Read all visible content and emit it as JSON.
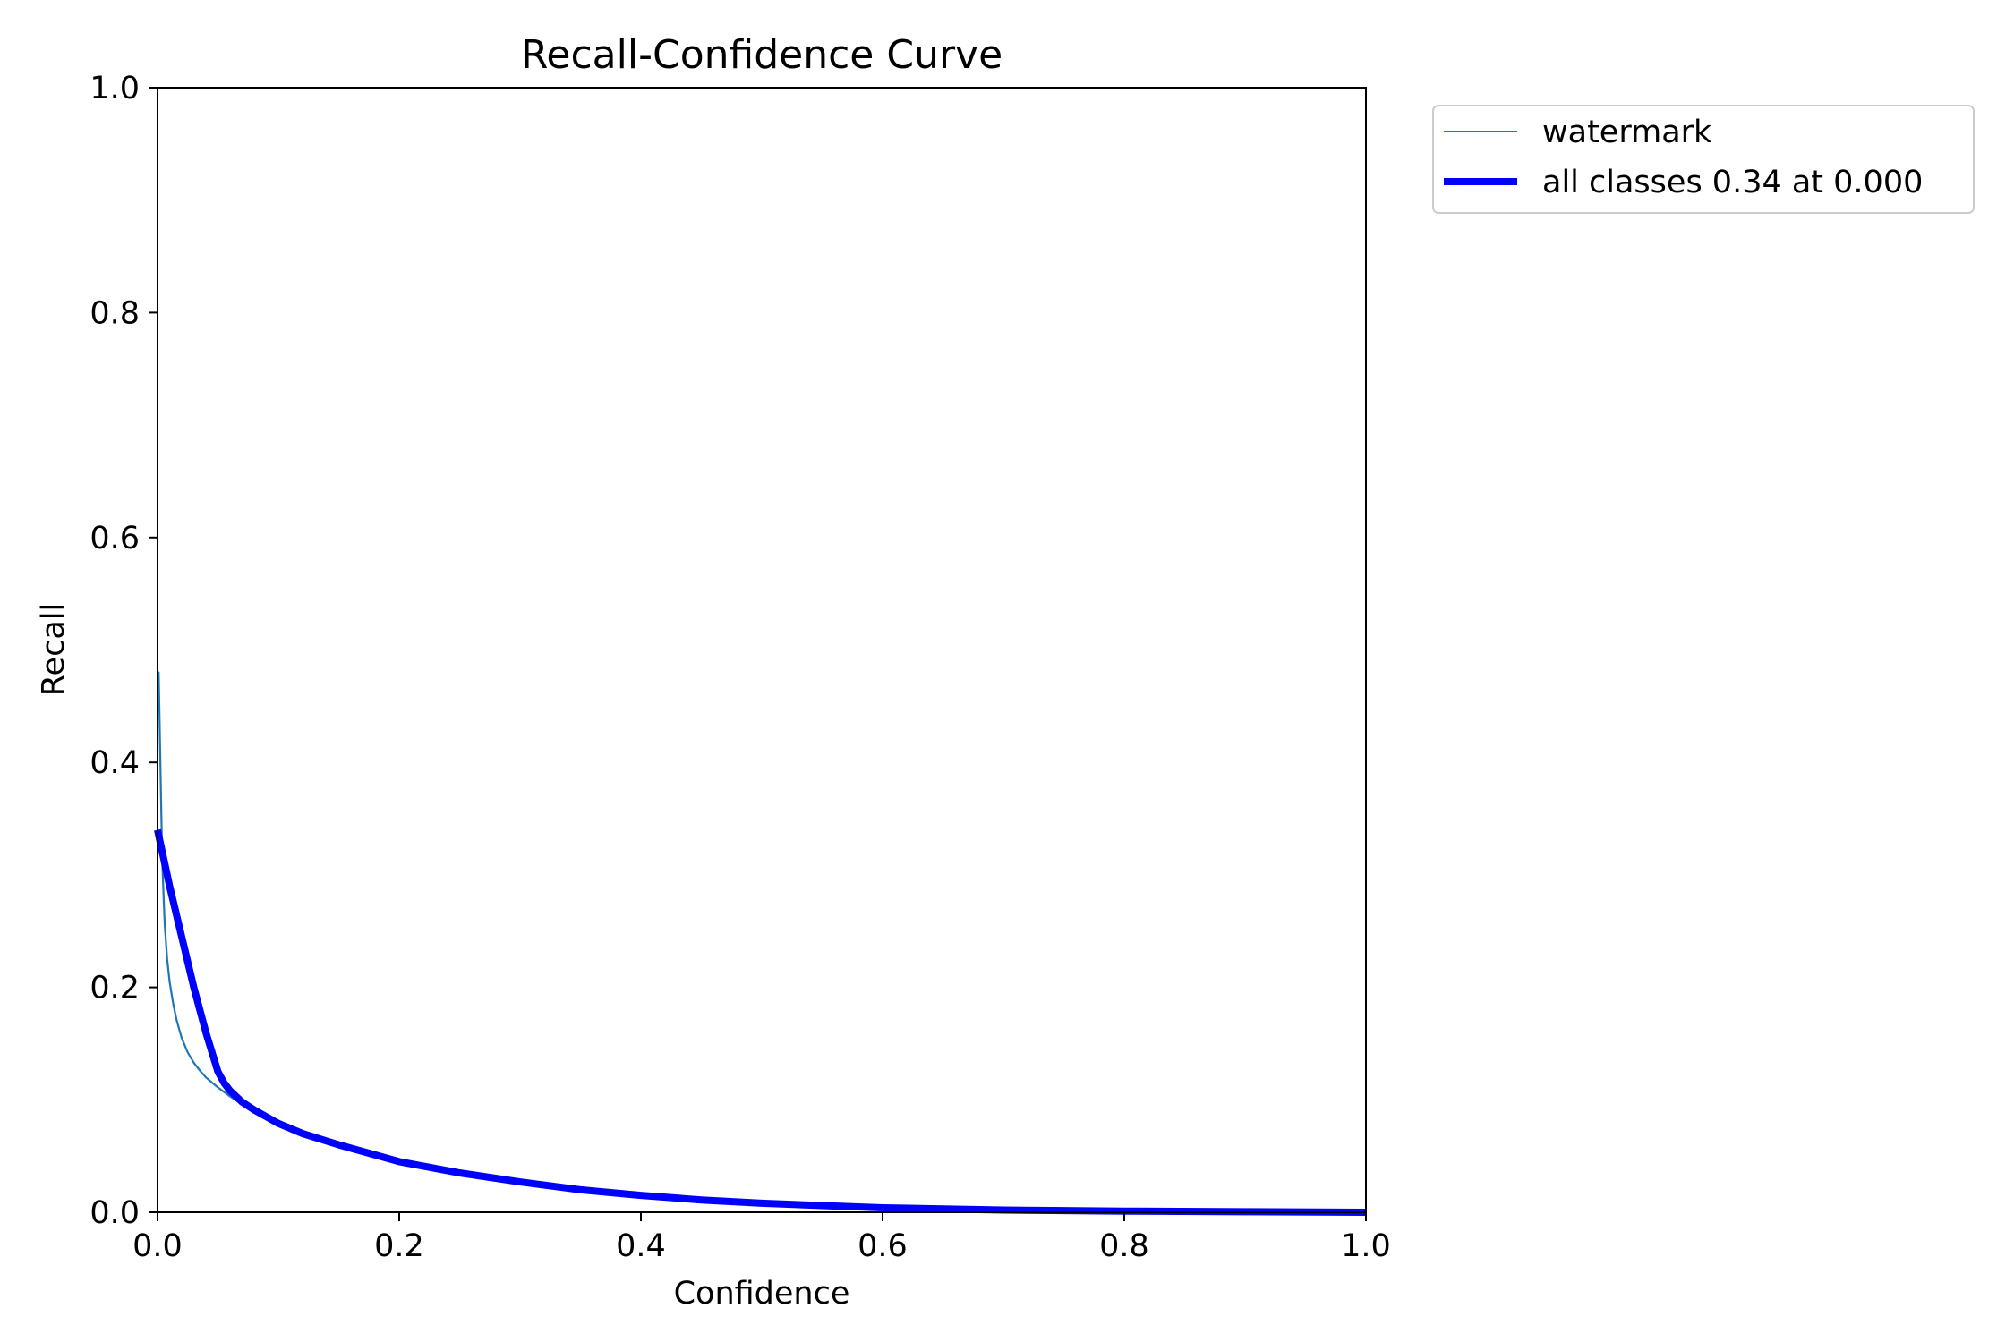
{
  "chart_data": {
    "type": "line",
    "title": "Recall-Confidence Curve",
    "xlabel": "Confidence",
    "ylabel": "Recall",
    "xlim": [
      0.0,
      1.0
    ],
    "ylim": [
      0.0,
      1.0
    ],
    "xticks": [
      "0.0",
      "0.2",
      "0.4",
      "0.6",
      "0.8",
      "1.0"
    ],
    "yticks": [
      "0.0",
      "0.2",
      "0.4",
      "0.6",
      "0.8",
      "1.0"
    ],
    "grid": false,
    "legend_position": "outside-top-right",
    "series": [
      {
        "name": "watermark",
        "color": "#1f77b4",
        "style": "thin",
        "x": [
          0.0,
          0.001,
          0.002,
          0.003,
          0.004,
          0.005,
          0.006,
          0.008,
          0.01,
          0.013,
          0.016,
          0.02,
          0.025,
          0.03,
          0.035,
          0.04,
          0.05,
          0.06,
          0.07,
          0.08,
          0.09,
          0.1,
          0.12,
          0.15,
          0.2,
          0.25,
          0.3,
          0.35,
          0.4,
          0.45,
          0.5,
          0.55,
          0.6,
          0.65,
          0.7,
          0.75,
          0.8,
          0.9,
          1.0
        ],
        "y": [
          0.48,
          0.48,
          0.42,
          0.36,
          0.31,
          0.28,
          0.255,
          0.225,
          0.205,
          0.185,
          0.17,
          0.155,
          0.142,
          0.133,
          0.126,
          0.12,
          0.111,
          0.103,
          0.096,
          0.089,
          0.084,
          0.079,
          0.07,
          0.06,
          0.045,
          0.035,
          0.027,
          0.02,
          0.015,
          0.011,
          0.008,
          0.006,
          0.004,
          0.003,
          0.002,
          0.0015,
          0.001,
          0.0005,
          0.0
        ]
      },
      {
        "name": "all classes 0.34 at 0.000",
        "color": "#0000ff",
        "style": "thick",
        "x": [
          0.0,
          0.002,
          0.01,
          0.02,
          0.03,
          0.04,
          0.05,
          0.055,
          0.06,
          0.07,
          0.08,
          0.09,
          0.1,
          0.12,
          0.15,
          0.2,
          0.25,
          0.3,
          0.35,
          0.4,
          0.45,
          0.5,
          0.55,
          0.6,
          0.65,
          0.7,
          0.75,
          0.8,
          0.9,
          1.0
        ],
        "y": [
          0.34,
          0.33,
          0.29,
          0.245,
          0.2,
          0.16,
          0.125,
          0.115,
          0.108,
          0.098,
          0.091,
          0.085,
          0.079,
          0.07,
          0.06,
          0.045,
          0.035,
          0.027,
          0.02,
          0.015,
          0.011,
          0.008,
          0.006,
          0.004,
          0.003,
          0.002,
          0.0015,
          0.001,
          0.0005,
          0.0
        ]
      }
    ]
  }
}
